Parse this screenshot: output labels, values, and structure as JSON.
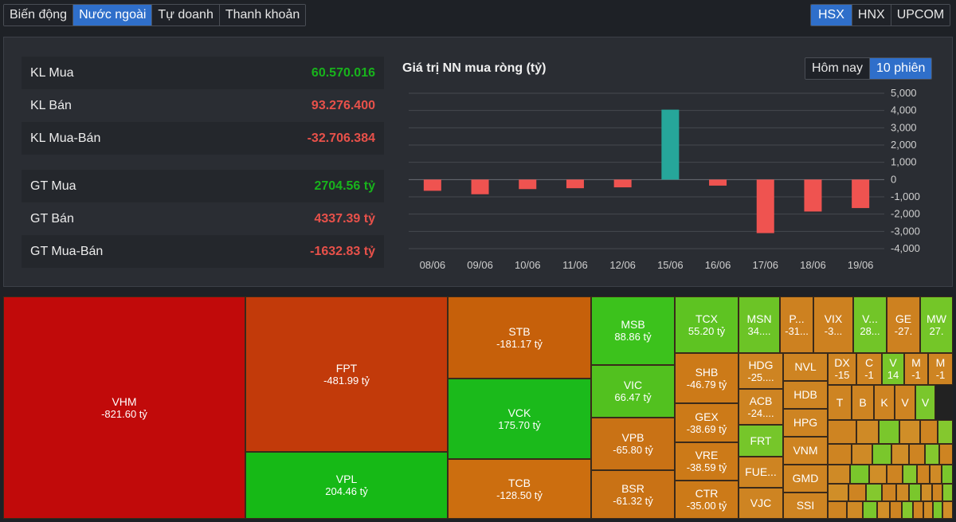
{
  "tabs": [
    "Biến động",
    "Nước ngoài",
    "Tự doanh",
    "Thanh khoản"
  ],
  "active_tab": 1,
  "exchanges": [
    "HSX",
    "HNX",
    "UPCOM"
  ],
  "active_exchange": 0,
  "stats": [
    {
      "label": "KL Mua",
      "value": "60.570.016",
      "tone": "green"
    },
    {
      "label": "KL Bán",
      "value": "93.276.400",
      "tone": "red"
    },
    {
      "label": "KL Mua-Bán",
      "value": "-32.706.384",
      "tone": "red"
    },
    {
      "label": "GT Mua",
      "value": "2704.56 tỷ",
      "tone": "green"
    },
    {
      "label": "GT Bán",
      "value": "4337.39 tỷ",
      "tone": "red"
    },
    {
      "label": "GT Mua-Bán",
      "value": "-1632.83 tỷ",
      "tone": "red"
    }
  ],
  "chart_title": "Giá trị NN mua ròng (tỷ)",
  "range_tabs": [
    "Hôm nay",
    "10 phiên"
  ],
  "active_range": 1,
  "colors": {
    "positive": "#26a69a",
    "negative": "#ef5350",
    "up_value": "#18b31c",
    "down_value": "#e8514a",
    "accent": "#2f6fca"
  },
  "chart_data": {
    "type": "bar",
    "title": "Giá trị NN mua ròng (tỷ)",
    "categories": [
      "08/06",
      "09/06",
      "10/06",
      "11/06",
      "12/06",
      "15/06",
      "16/06",
      "17/06",
      "18/06",
      "19/06"
    ],
    "values": [
      -650,
      -850,
      -550,
      -500,
      -450,
      4050,
      -350,
      -3100,
      -1850,
      -1650
    ],
    "yticks": [
      "5,000",
      "4,000",
      "3,000",
      "2,000",
      "1,000",
      "0",
      "-1,000",
      "-2,000",
      "-3,000",
      "-4,000"
    ],
    "ylim": [
      -4000,
      5000
    ],
    "grid": true
  },
  "treemap": [
    {
      "t": "VHM",
      "v": "-821.60 tỷ",
      "c": "#c10a0a",
      "r": [
        0,
        0,
        304,
        279
      ]
    },
    {
      "t": "FPT",
      "v": "-481.99 tỷ",
      "c": "#c23a0a",
      "r": [
        304,
        0,
        254,
        195
      ]
    },
    {
      "t": "VPL",
      "v": "204.46 tỷ",
      "c": "#16b916",
      "r": [
        304,
        195,
        254,
        84
      ]
    },
    {
      "t": "STB",
      "v": "-181.17 tỷ",
      "c": "#c6600a",
      "r": [
        558,
        0,
        180,
        103
      ]
    },
    {
      "t": "VCK",
      "v": "175.70 tỷ",
      "c": "#1bba1b",
      "r": [
        558,
        103,
        180,
        101
      ]
    },
    {
      "t": "TCB",
      "v": "-128.50 tỷ",
      "c": "#cc6e0f",
      "r": [
        558,
        204,
        180,
        75
      ]
    },
    {
      "t": "MSB",
      "v": "88.86 tỷ",
      "c": "#3cc21c",
      "r": [
        738,
        0,
        105,
        86
      ]
    },
    {
      "t": "VIC",
      "v": "66.47 tỷ",
      "c": "#52c11f",
      "r": [
        738,
        86,
        105,
        66
      ]
    },
    {
      "t": "VPB",
      "v": "-65.80 tỷ",
      "c": "#c97215",
      "r": [
        738,
        152,
        105,
        66
      ]
    },
    {
      "t": "BSR",
      "v": "-61.32 tỷ",
      "c": "#c97215",
      "r": [
        738,
        218,
        105,
        61
      ]
    },
    {
      "t": "TCX",
      "v": "55.20 tỷ",
      "c": "#5ec322",
      "r": [
        843,
        0,
        80,
        71
      ]
    },
    {
      "t": "SHB",
      "v": "-46.79 tỷ",
      "c": "#cc7a18",
      "r": [
        843,
        71,
        80,
        63
      ]
    },
    {
      "t": "GEX",
      "v": "-38.69 tỷ",
      "c": "#cc7a18",
      "r": [
        843,
        134,
        80,
        49
      ]
    },
    {
      "t": "VRE",
      "v": "-38.59 tỷ",
      "c": "#cc7a18",
      "r": [
        843,
        183,
        80,
        48
      ]
    },
    {
      "t": "CTR",
      "v": "-35.00 tỷ",
      "c": "#cc7a18",
      "r": [
        843,
        231,
        80,
        48
      ]
    },
    {
      "t": "MSN",
      "v": "34....",
      "c": "#6cc426",
      "r": [
        923,
        0,
        52,
        71
      ]
    },
    {
      "t": "P...",
      "v": "-31...",
      "c": "#cd8120",
      "r": [
        975,
        0,
        42,
        71
      ]
    },
    {
      "t": "VIX",
      "v": "-3...",
      "c": "#cd8120",
      "r": [
        1017,
        0,
        50,
        71
      ]
    },
    {
      "t": "V...",
      "v": "28...",
      "c": "#72c528",
      "r": [
        1067,
        0,
        42,
        71
      ]
    },
    {
      "t": "GE",
      "v": "-27.",
      "c": "#cd8120",
      "r": [
        1109,
        0,
        42,
        71
      ]
    },
    {
      "t": "MW",
      "v": "27.",
      "c": "#74c628",
      "r": [
        1151,
        0,
        41,
        71
      ]
    },
    {
      "t": "HDG",
      "v": "-25....",
      "c": "#ce8422",
      "r": [
        923,
        71,
        56,
        45
      ]
    },
    {
      "t": "ACB",
      "v": "-24....",
      "c": "#ce8422",
      "r": [
        923,
        116,
        56,
        45
      ]
    },
    {
      "t": "FRT",
      "v": "",
      "c": "#76c62a",
      "r": [
        923,
        161,
        56,
        40
      ]
    },
    {
      "t": "FUE...",
      "v": "",
      "c": "#ce8422",
      "r": [
        923,
        201,
        56,
        39
      ]
    },
    {
      "t": "VJC",
      "v": "",
      "c": "#ce8422",
      "r": [
        923,
        240,
        56,
        39
      ]
    },
    {
      "t": "NVL",
      "v": "",
      "c": "#ce8422",
      "r": [
        979,
        71,
        56,
        35
      ]
    },
    {
      "t": "HDB",
      "v": "",
      "c": "#ce8422",
      "r": [
        979,
        106,
        56,
        35
      ]
    },
    {
      "t": "HPG",
      "v": "",
      "c": "#ce8422",
      "r": [
        979,
        141,
        56,
        35
      ]
    },
    {
      "t": "VNM",
      "v": "",
      "c": "#ce8422",
      "r": [
        979,
        176,
        56,
        35
      ]
    },
    {
      "t": "GMD",
      "v": "",
      "c": "#ce8422",
      "r": [
        979,
        211,
        56,
        35
      ]
    },
    {
      "t": "SSI",
      "v": "",
      "c": "#ce8422",
      "r": [
        979,
        246,
        56,
        33
      ]
    },
    {
      "t": "DX",
      "v": "-15",
      "c": "#ce8422",
      "r": [
        1035,
        71,
        36,
        40
      ]
    },
    {
      "t": "C",
      "v": "-1",
      "c": "#ce8422",
      "r": [
        1071,
        71,
        32,
        40
      ]
    },
    {
      "t": "V",
      "v": "14",
      "c": "#78c62a",
      "r": [
        1103,
        71,
        28,
        40
      ]
    },
    {
      "t": "M",
      "v": "-1",
      "c": "#ce8422",
      "r": [
        1131,
        71,
        30,
        40
      ]
    },
    {
      "t": "M",
      "v": "-1",
      "c": "#ce8422",
      "r": [
        1161,
        71,
        31,
        40
      ]
    },
    {
      "t": "T",
      "v": "",
      "c": "#ce8422",
      "r": [
        1035,
        111,
        30,
        44
      ]
    },
    {
      "t": "B",
      "v": "",
      "c": "#ce8422",
      "r": [
        1065,
        111,
        28,
        44
      ]
    },
    {
      "t": "K",
      "v": "",
      "c": "#ce8422",
      "r": [
        1093,
        111,
        26,
        44
      ]
    },
    {
      "t": "V",
      "v": "",
      "c": "#ce8422",
      "r": [
        1119,
        111,
        26,
        44
      ]
    },
    {
      "t": "V",
      "v": "",
      "c": "#7ac72c",
      "r": [
        1145,
        111,
        25,
        44
      ]
    }
  ],
  "treemap_small_colors": [
    "#ce8422",
    "#cf8a26",
    "#7ac72c",
    "#d08e28",
    "#ce8422",
    "#84c82e"
  ]
}
